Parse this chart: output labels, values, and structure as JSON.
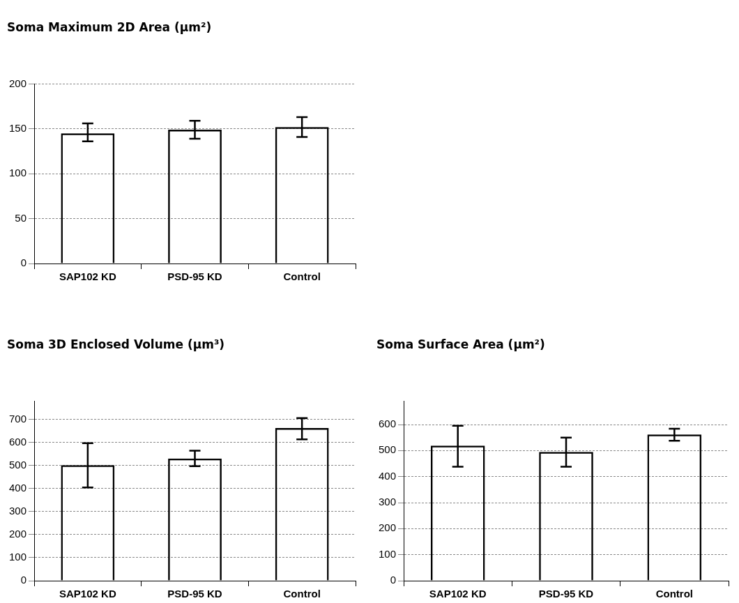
{
  "chart_data": [
    {
      "type": "bar",
      "title": "Soma Maximum 2D Area (µm²)",
      "categories": [
        "SAP102 KD",
        "PSD-95 KD",
        "Control"
      ],
      "values": [
        145,
        149,
        152
      ],
      "errors": [
        [
          136,
          156
        ],
        [
          139,
          159
        ],
        [
          141,
          163
        ]
      ],
      "color": "#000000",
      "ylim": [
        0,
        200
      ],
      "yticks": [
        0,
        50,
        100,
        150,
        200
      ],
      "grid": "y"
    },
    {
      "type": "bar",
      "title": "Soma 3D Enclosed Volume (µm³)",
      "categories": [
        "SAP102 KD",
        "PSD-95 KD",
        "Control"
      ],
      "values": [
        502,
        531,
        663
      ],
      "errors": [
        [
          405,
          597
        ],
        [
          497,
          565
        ],
        [
          614,
          706
        ]
      ],
      "color": "#000000",
      "ylim": [
        0,
        780
      ],
      "yticks": [
        0,
        100,
        200,
        300,
        400,
        500,
        600,
        700
      ],
      "grid": "y"
    },
    {
      "type": "bar",
      "title": "Soma Surface Area (µm²)",
      "categories": [
        "SAP102 KD",
        "PSD-95 KD",
        "Control"
      ],
      "values": [
        519,
        495,
        562
      ],
      "errors": [
        [
          438,
          595
        ],
        [
          438,
          550
        ],
        [
          538,
          584
        ]
      ],
      "color": "#000000",
      "ylim": [
        0,
        690
      ],
      "yticks": [
        0,
        100,
        200,
        300,
        400,
        500,
        600
      ],
      "grid": "y"
    }
  ]
}
